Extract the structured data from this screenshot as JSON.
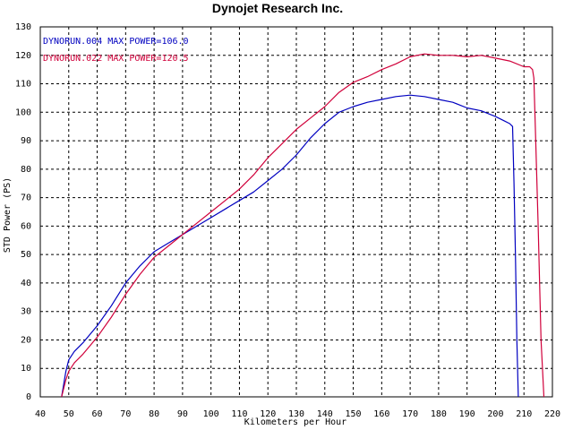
{
  "chart_data": {
    "type": "line",
    "title": "Dynojet  Research  Inc.",
    "xlabel": "Kilometers per Hour",
    "ylabel": "STD Power (PS)",
    "xlim": [
      40,
      220
    ],
    "ylim": [
      0,
      130
    ],
    "xticks": [
      40,
      50,
      60,
      70,
      80,
      90,
      100,
      110,
      120,
      130,
      140,
      150,
      160,
      170,
      180,
      190,
      200,
      210,
      220
    ],
    "yticks": [
      0,
      10,
      20,
      30,
      40,
      50,
      60,
      70,
      80,
      90,
      100,
      110,
      120,
      130
    ],
    "grid": true,
    "legend": "top-left",
    "series": [
      {
        "name": "DYNORUN.004  MAX POWER=106.0",
        "color": "#0000c0",
        "x": [
          47.5,
          48,
          49,
          50,
          52,
          55,
          60,
          65,
          70,
          75,
          80,
          85,
          90,
          95,
          100,
          105,
          110,
          115,
          120,
          125,
          130,
          135,
          140,
          145,
          150,
          155,
          160,
          165,
          170,
          175,
          180,
          185,
          190,
          195,
          200,
          203,
          205,
          206,
          206.5,
          207,
          207.5,
          208
        ],
        "y": [
          0,
          3,
          9,
          13,
          16,
          19,
          25,
          32,
          40,
          46,
          51,
          54,
          57,
          60,
          63,
          66,
          69,
          72,
          76,
          80,
          85,
          91,
          96,
          100,
          102,
          103.5,
          104.5,
          105.5,
          106,
          105.5,
          104.5,
          103.5,
          101.5,
          100.5,
          98.5,
          97,
          96,
          95,
          75,
          50,
          20,
          0
        ]
      },
      {
        "name": "DYNORUN.022  MAX POWER=120.5",
        "color": "#d0003a",
        "x": [
          47.5,
          48,
          49,
          50,
          52,
          55,
          60,
          65,
          70,
          75,
          80,
          85,
          90,
          95,
          100,
          105,
          110,
          115,
          120,
          125,
          130,
          135,
          140,
          145,
          150,
          155,
          160,
          165,
          170,
          175,
          180,
          185,
          190,
          195,
          200,
          205,
          210,
          212,
          213,
          213.5,
          214,
          215,
          216,
          217
        ],
        "y": [
          0,
          2,
          6,
          9,
          12,
          15,
          21,
          28,
          36,
          43,
          49,
          53,
          57,
          61,
          65,
          69,
          73,
          78,
          84,
          89,
          94,
          98,
          102,
          107,
          110.5,
          112.5,
          115,
          117,
          119.5,
          120.5,
          120,
          120,
          119.5,
          120,
          119,
          118,
          116,
          116,
          115,
          112,
          95,
          60,
          20,
          0
        ]
      }
    ]
  }
}
